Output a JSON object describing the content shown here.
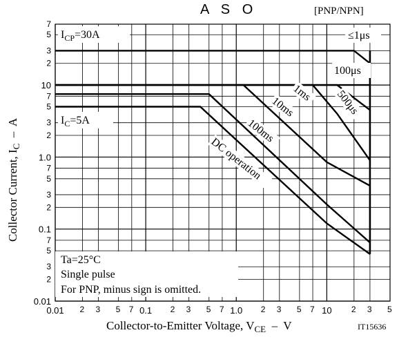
{
  "chart_data": {
    "type": "line",
    "title": "A S O",
    "subtitle": "[PNP/NPN]",
    "xlabel": {
      "main": "Collector-to-Emitter Voltage, V",
      "sub": "CE",
      "tail": "  –  V"
    },
    "ylabel": {
      "main": "Collector Current, I",
      "sub": "C",
      "tail": "  –  A"
    },
    "figure_code": "IT15636",
    "x_scale": "log",
    "y_scale": "log",
    "xlim": [
      0.01,
      50
    ],
    "ylim": [
      0.01,
      70
    ],
    "x_major_ticks": [
      {
        "value": 0.01,
        "label": "0.01"
      },
      {
        "value": 0.1,
        "label": "0.1"
      },
      {
        "value": 1,
        "label": "1.0"
      },
      {
        "value": 10,
        "label": "10"
      }
    ],
    "x_minor_ticks": [
      {
        "value": 0.02,
        "label": "2"
      },
      {
        "value": 0.03,
        "label": "3"
      },
      {
        "value": 0.05,
        "label": "5"
      },
      {
        "value": 0.07,
        "label": "7"
      },
      {
        "value": 0.2,
        "label": "2"
      },
      {
        "value": 0.3,
        "label": "3"
      },
      {
        "value": 0.5,
        "label": "5"
      },
      {
        "value": 0.7,
        "label": "7"
      },
      {
        "value": 2,
        "label": "2"
      },
      {
        "value": 3,
        "label": "3"
      },
      {
        "value": 5,
        "label": "5"
      },
      {
        "value": 7,
        "label": "7"
      },
      {
        "value": 20,
        "label": "2"
      },
      {
        "value": 30,
        "label": "3"
      },
      {
        "value": 50,
        "label": "5"
      }
    ],
    "y_major_ticks": [
      {
        "value": 0.01,
        "label": "0.01"
      },
      {
        "value": 0.1,
        "label": "0.1"
      },
      {
        "value": 1,
        "label": "1.0"
      },
      {
        "value": 10,
        "label": "10"
      }
    ],
    "y_minor_ticks": [
      {
        "value": 0.02,
        "label": "2"
      },
      {
        "value": 0.03,
        "label": "3"
      },
      {
        "value": 0.05,
        "label": "5"
      },
      {
        "value": 0.07,
        "label": "7"
      },
      {
        "value": 0.2,
        "label": "2"
      },
      {
        "value": 0.3,
        "label": "3"
      },
      {
        "value": 0.5,
        "label": "5"
      },
      {
        "value": 0.7,
        "label": "7"
      },
      {
        "value": 2,
        "label": "2"
      },
      {
        "value": 3,
        "label": "3"
      },
      {
        "value": 5,
        "label": "5"
      },
      {
        "value": 7,
        "label": "7"
      },
      {
        "value": 20,
        "label": "2"
      },
      {
        "value": 30,
        "label": "3"
      },
      {
        "value": 50,
        "label": "5"
      },
      {
        "value": 70,
        "label": "7"
      }
    ],
    "grid": true,
    "series": [
      {
        "name": "≤1μs",
        "points": [
          [
            0.01,
            30
          ],
          [
            20,
            30
          ],
          [
            30,
            20
          ]
        ]
      },
      {
        "name": "100μs",
        "points": [
          [
            0.01,
            10
          ],
          [
            30,
            10
          ]
        ]
      },
      {
        "name": "500μs",
        "points": [
          [
            0.01,
            10
          ],
          [
            13,
            10
          ],
          [
            30,
            4.5
          ]
        ]
      },
      {
        "name": "1ms",
        "points": [
          [
            0.01,
            10
          ],
          [
            7,
            10
          ],
          [
            13,
            4
          ],
          [
            30,
            0.9
          ]
        ]
      },
      {
        "name": "10ms",
        "points": [
          [
            0.01,
            10
          ],
          [
            1.2,
            10
          ],
          [
            10,
            0.85
          ],
          [
            30,
            0.4
          ]
        ]
      },
      {
        "name": "100ms",
        "points": [
          [
            0.01,
            7.5
          ],
          [
            0.5,
            7.5
          ],
          [
            10,
            0.22
          ],
          [
            30,
            0.065
          ]
        ]
      },
      {
        "name": "DC operation",
        "points": [
          [
            0.01,
            5
          ],
          [
            0.4,
            5
          ],
          [
            10,
            0.12
          ],
          [
            30,
            0.045
          ]
        ]
      }
    ],
    "vertical_limit": {
      "x": 30,
      "y_from": 0.045,
      "y_to": 30
    },
    "annotations": {
      "icp": {
        "main": "I",
        "sub": "CP",
        "tail": "=30A"
      },
      "ic": {
        "main": "I",
        "sub": "C",
        "tail": "=5A"
      },
      "le1us": "≤1μs",
      "us100": "100μs",
      "us500": "500μs",
      "ms1": "1ms",
      "ms10": "10ms",
      "ms100": "100ms",
      "dc": "DC operation",
      "notes": [
        "Ta=25°C",
        "Single pulse",
        "For PNP, minus sign is omitted."
      ]
    }
  }
}
